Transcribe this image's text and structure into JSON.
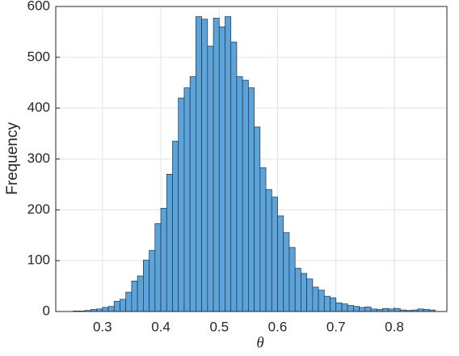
{
  "chart_data": {
    "type": "histogram",
    "x_label": "θ",
    "y_label": "Frequency",
    "bins": [
      0.25,
      0.26,
      0.27,
      0.28,
      0.29,
      0.3,
      0.31,
      0.32,
      0.33,
      0.34,
      0.35,
      0.36,
      0.37,
      0.38,
      0.39,
      0.4,
      0.41,
      0.42,
      0.43,
      0.44,
      0.45,
      0.46,
      0.47,
      0.48,
      0.49,
      0.5,
      0.51,
      0.52,
      0.53,
      0.54,
      0.55,
      0.56,
      0.57,
      0.58,
      0.59,
      0.6,
      0.61,
      0.62,
      0.63,
      0.64,
      0.65,
      0.66,
      0.67,
      0.68,
      0.69,
      0.7,
      0.71,
      0.72,
      0.73,
      0.74,
      0.75,
      0.76,
      0.77,
      0.78,
      0.79,
      0.8,
      0.81,
      0.82,
      0.83,
      0.84,
      0.85,
      0.86,
      0.87
    ],
    "values": [
      1,
      1,
      2,
      4,
      5,
      8,
      10,
      20,
      24,
      38,
      60,
      70,
      101,
      120,
      173,
      203,
      270,
      335,
      420,
      440,
      462,
      580,
      575,
      522,
      577,
      560,
      580,
      530,
      462,
      455,
      440,
      363,
      283,
      240,
      225,
      188,
      155,
      126,
      85,
      75,
      64,
      48,
      42,
      30,
      27,
      17,
      15,
      12,
      10,
      8,
      9,
      5,
      4,
      6,
      5,
      6,
      3,
      2,
      3,
      5,
      4,
      3
    ],
    "color": "#5ba3d9",
    "edge_color": "#1f3347",
    "xlim": [
      0.22,
      0.89
    ],
    "ylim": [
      0,
      600
    ],
    "xticks": [
      0.3,
      0.4,
      0.5,
      0.6,
      0.7,
      0.8
    ],
    "yticks": [
      0,
      100,
      200,
      300,
      400,
      500,
      600
    ],
    "grid": true
  }
}
